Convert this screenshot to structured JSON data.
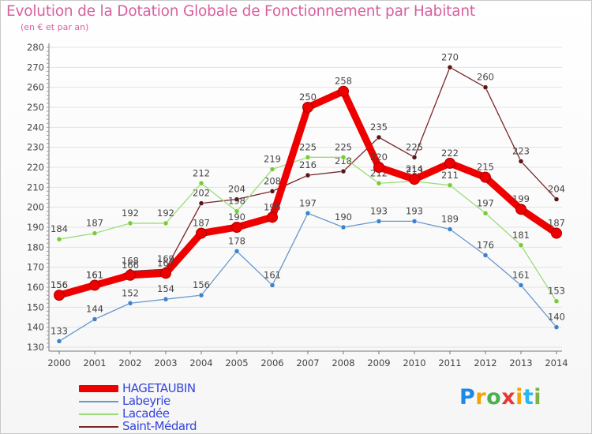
{
  "header": {
    "title": "Evolution de la Dotation Globale de Fonctionnement par Habitant",
    "subtitle": "(en € et par an)"
  },
  "chart_data": {
    "type": "line",
    "title": "Evolution de la Dotation Globale de Fonctionnement par Habitant",
    "subtitle": "(en € et par an)",
    "xlabel": "",
    "ylabel": "",
    "x": [
      "2000",
      "2001",
      "2002",
      "2003",
      "2004",
      "2005",
      "2006",
      "2007",
      "2008",
      "2009",
      "2010",
      "2011",
      "2012",
      "2013",
      "2014"
    ],
    "ylim": [
      130,
      280
    ],
    "yticks": [
      130,
      140,
      150,
      160,
      170,
      180,
      190,
      200,
      210,
      220,
      230,
      240,
      250,
      260,
      270,
      280
    ],
    "grid": "horizontal",
    "legend_position": "bottom-left",
    "series": [
      {
        "name": "Saint-Médard",
        "color": "#7a2628",
        "marker": "#5a1416",
        "label_color": "#444444",
        "values": [
          156,
          161,
          168,
          169,
          202,
          204,
          208,
          216,
          218,
          235,
          225,
          270,
          260,
          223,
          204
        ]
      },
      {
        "name": "Lacadée",
        "color": "#99dd77",
        "marker": "#77cc33",
        "label_color": "#444444",
        "values": [
          184,
          187,
          192,
          192,
          212,
          198,
          219,
          225,
          225,
          212,
          213,
          211,
          197,
          181,
          153
        ]
      },
      {
        "name": "Labeyrie",
        "color": "#6699cc",
        "marker": "#3a82cc",
        "label_color": "#444444",
        "values": [
          133,
          144,
          152,
          154,
          156,
          178,
          161,
          197,
          190,
          193,
          193,
          189,
          176,
          161,
          140
        ]
      },
      {
        "name": "HAGETAUBIN",
        "color": "#ee0000",
        "marker": "#cc0000",
        "label_color": "#444444",
        "values": [
          156,
          161,
          166,
          167,
          187,
          190,
          195,
          250,
          258,
          220,
          214,
          222,
          215,
          199,
          187
        ]
      }
    ]
  },
  "legend": {
    "items": [
      {
        "name": "HAGETAUBIN",
        "color": "#ee0000"
      },
      {
        "name": "Labeyrie",
        "color": "#6699cc"
      },
      {
        "name": "Lacadée",
        "color": "#99dd77"
      },
      {
        "name": "Saint-Médard",
        "color": "#7a2628"
      }
    ]
  },
  "logo": {
    "letters": [
      "P",
      "r",
      "o",
      "x",
      "i",
      "t",
      "i"
    ],
    "colors": [
      "#1e88e5",
      "#f4a300",
      "#4caf50",
      "#e53935",
      "#f4a300",
      "#29b6f6",
      "#7cb342"
    ]
  }
}
